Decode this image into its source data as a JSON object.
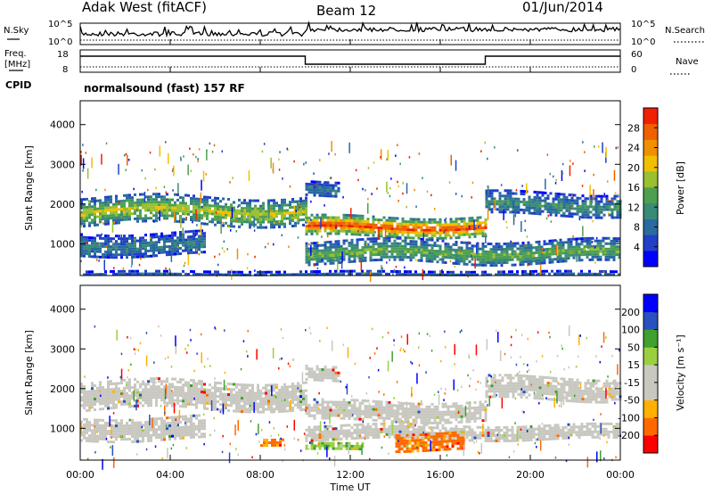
{
  "header": {
    "station": "Adak West (fitACF)",
    "beam": "Beam 12",
    "date": "01/Jun/2014"
  },
  "noise_panel": {
    "left_label": "N.Sky",
    "right_label": "N.Search",
    "left_ticks": [
      "10^5",
      "10^0"
    ],
    "right_ticks": [
      "10^5",
      "10^0"
    ]
  },
  "freq_panel": {
    "left_label_top": "Freq.",
    "left_label_bottom": "[MHz]",
    "right_label": "Nave",
    "left_ticks": [
      "18",
      "8"
    ],
    "right_ticks": [
      "60",
      "0"
    ],
    "cpid_label": "CPID",
    "program": "normalsound (fast) 157 RF"
  },
  "colors": {
    "power": [
      "#0000ff",
      "#2040c8",
      "#2a6aa0",
      "#3a8a78",
      "#4ea050",
      "#98c030",
      "#f0c000",
      "#f09000",
      "#f06000",
      "#f02000"
    ],
    "velocity": [
      "#ff0000",
      "#ff6a00",
      "#ffb000",
      "#c8c8c0",
      "#c8c8c0",
      "#9ad040",
      "#40a030",
      "#2a50c0",
      "#0000ff"
    ]
  },
  "chart_data": [
    {
      "type": "heatmap",
      "name": "power",
      "ylabel": "Slant Range [km]",
      "ylim": [
        200,
        4600
      ],
      "yticks": [
        "1000",
        "2000",
        "3000",
        "4000"
      ],
      "colorbar_label": "Power [dB]",
      "colorbar_ticks": [
        "4",
        "8",
        "12",
        "16",
        "20",
        "24",
        "28"
      ],
      "bands": [
        {
          "t": [
            0,
            10
          ],
          "r": [
            1500,
            2200
          ],
          "level": 0.55
        },
        {
          "t": [
            10,
            18
          ],
          "r": [
            1200,
            1700
          ],
          "level": 0.85
        },
        {
          "t": [
            18,
            24
          ],
          "r": [
            1700,
            2300
          ],
          "level": 0.35
        },
        {
          "t": [
            10,
            11.5
          ],
          "r": [
            2200,
            2600
          ],
          "level": 0.3
        },
        {
          "t": [
            0,
            5.5
          ],
          "r": [
            700,
            1300
          ],
          "level": 0.3
        },
        {
          "t": [
            10,
            24
          ],
          "r": [
            500,
            1100
          ],
          "level": 0.45
        },
        {
          "t": [
            0,
            24
          ],
          "r": [
            220,
            330
          ],
          "level": 0.25
        }
      ]
    },
    {
      "type": "heatmap",
      "name": "velocity",
      "ylabel": "Slant Range [km]",
      "ylim": [
        200,
        4600
      ],
      "yticks": [
        "1000",
        "2000",
        "3000",
        "4000"
      ],
      "colorbar_label": "Velocity [m s⁻¹]",
      "colorbar_ticks": [
        "200",
        "100",
        "50",
        "15",
        "-15",
        "-50",
        "-100",
        "-200"
      ],
      "bands": [
        {
          "t": [
            0,
            10
          ],
          "r": [
            1500,
            2200
          ],
          "level": 0.45
        },
        {
          "t": [
            10,
            18
          ],
          "r": [
            1200,
            1700
          ],
          "level": 0.45
        },
        {
          "t": [
            18,
            24
          ],
          "r": [
            1700,
            2300
          ],
          "level": 0.45
        },
        {
          "t": [
            10,
            11.5
          ],
          "r": [
            2200,
            2600
          ],
          "level": 0.45
        },
        {
          "t": [
            0,
            5.5
          ],
          "r": [
            700,
            1300
          ],
          "level": 0.45
        },
        {
          "t": [
            10,
            24
          ],
          "r": [
            700,
            1100
          ],
          "level": 0.45
        },
        {
          "t": [
            8,
            9
          ],
          "r": [
            560,
            760
          ],
          "level": 0.2
        },
        {
          "t": [
            10,
            12.5
          ],
          "r": [
            480,
            640
          ],
          "level": 0.65
        },
        {
          "t": [
            14,
            17
          ],
          "r": [
            460,
            900
          ],
          "level": 0.2
        }
      ]
    }
  ],
  "x_axis": {
    "label": "Time UT",
    "range": [
      0,
      24
    ],
    "ticks": [
      "00:00",
      "04:00",
      "08:00",
      "12:00",
      "16:00",
      "20:00",
      "00:00"
    ]
  }
}
